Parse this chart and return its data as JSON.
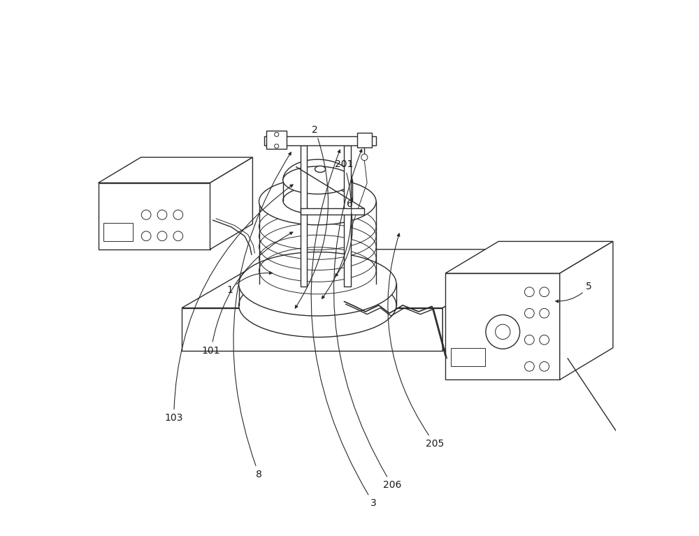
{
  "bg_color": "#ffffff",
  "line_color": "#2a2a2a",
  "lw": 1.0,
  "lw_thin": 0.7,
  "figsize": [
    10.0,
    7.67
  ],
  "labels": {
    "3": {
      "txt": [
        0.545,
        0.058
      ],
      "arr": [
        0.484,
        0.727
      ]
    },
    "8": {
      "txt": [
        0.33,
        0.112
      ],
      "arr": [
        0.393,
        0.722
      ]
    },
    "206": {
      "txt": [
        0.58,
        0.092
      ],
      "arr": [
        0.525,
        0.728
      ]
    },
    "205": {
      "txt": [
        0.66,
        0.17
      ],
      "arr": [
        0.595,
        0.57
      ]
    },
    "103": {
      "txt": [
        0.17,
        0.218
      ],
      "arr": [
        0.398,
        0.66
      ]
    },
    "101": {
      "txt": [
        0.24,
        0.345
      ],
      "arr": [
        0.398,
        0.57
      ]
    },
    "1": {
      "txt": [
        0.275,
        0.458
      ],
      "arr": [
        0.36,
        0.49
      ]
    },
    "6": {
      "txt": [
        0.5,
        0.62
      ],
      "arr": [
        0.47,
        0.48
      ]
    },
    "201": {
      "txt": [
        0.49,
        0.695
      ],
      "arr": [
        0.445,
        0.438
      ]
    },
    "2": {
      "txt": [
        0.435,
        0.76
      ],
      "arr": [
        0.395,
        0.42
      ]
    },
    "5": {
      "txt": [
        0.95,
        0.465
      ],
      "arr": [
        0.882,
        0.438
      ]
    }
  }
}
